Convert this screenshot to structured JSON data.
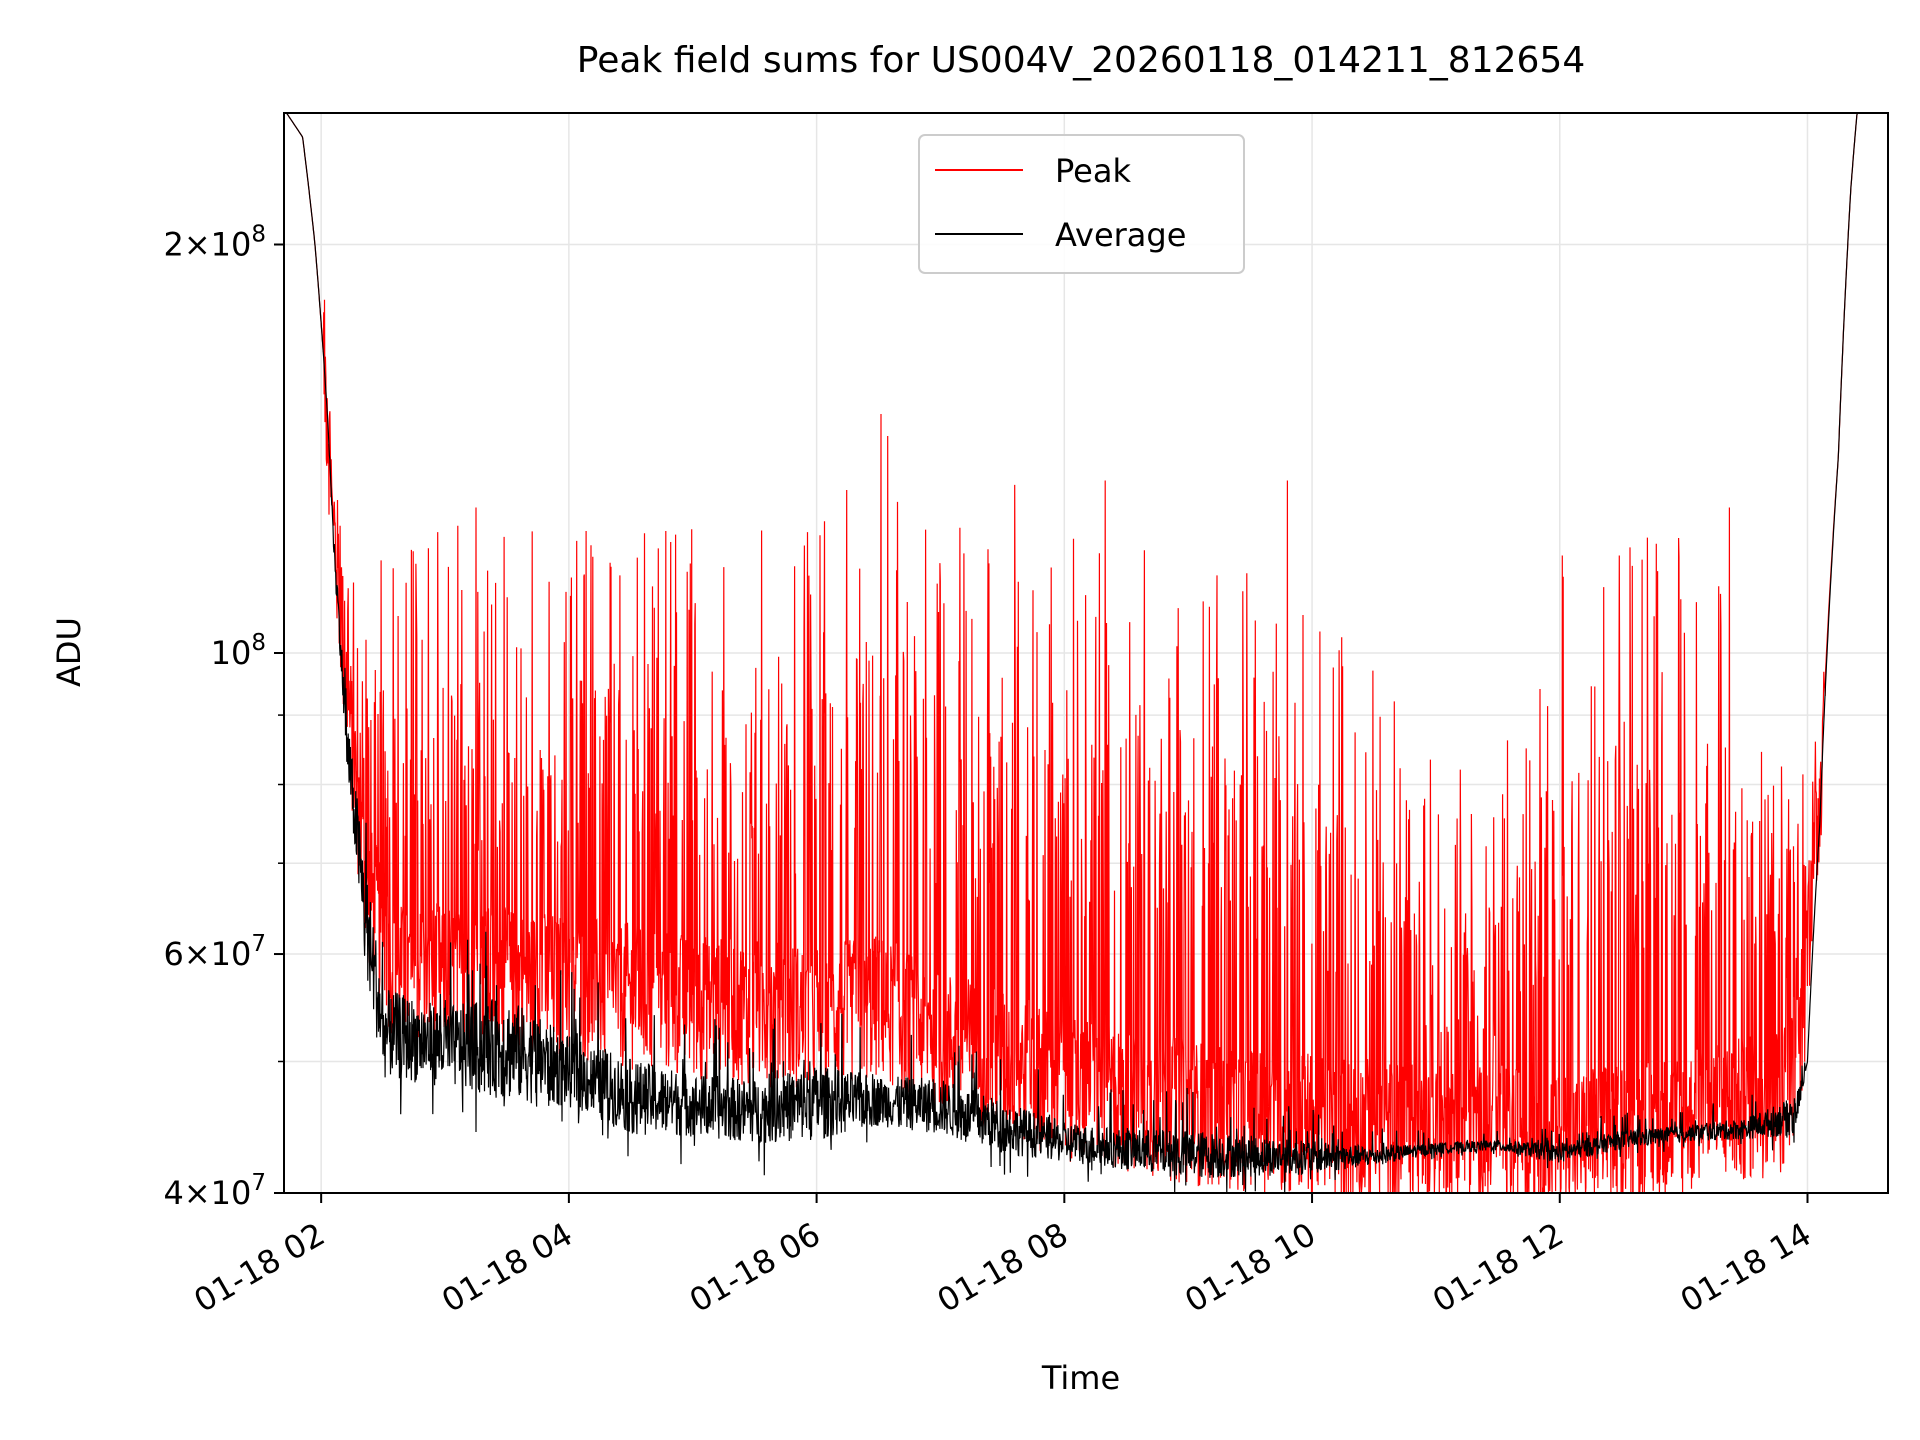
{
  "chart_data": {
    "type": "line",
    "title": "Peak field sums for US004V_20260118_014211_812654",
    "xlabel": "Time",
    "ylabel": "ADU",
    "yscale": "log",
    "ylim": [
      40000000,
      250000000
    ],
    "xlim_hours": [
      1.7,
      14.65
    ],
    "grid": true,
    "legend_position": "upper center",
    "x_ticks": [
      {
        "hour": 2,
        "label": "01-18 02"
      },
      {
        "hour": 4,
        "label": "01-18 04"
      },
      {
        "hour": 6,
        "label": "01-18 06"
      },
      {
        "hour": 8,
        "label": "01-18 08"
      },
      {
        "hour": 10,
        "label": "01-18 10"
      },
      {
        "hour": 12,
        "label": "01-18 12"
      },
      {
        "hour": 14,
        "label": "01-18 14"
      }
    ],
    "y_major_ticks": [
      {
        "value": 40000000,
        "mantissa": "4",
        "exp": "7"
      },
      {
        "value": 60000000,
        "mantissa": "6",
        "exp": "7"
      },
      {
        "value": 100000000,
        "mantissa": "",
        "exp": "8"
      },
      {
        "value": 200000000,
        "mantissa": "2",
        "exp": "8"
      }
    ],
    "y_minor_ticks": [
      50000000,
      70000000,
      80000000,
      90000000
    ],
    "series": [
      {
        "name": "Peak",
        "color": "#ff0000",
        "envelope": {
          "x_hours": [
            1.72,
            1.85,
            1.95,
            2.05,
            2.1,
            2.2,
            2.35,
            2.6,
            3.0,
            4.0,
            5.0,
            6.0,
            6.5,
            7.0,
            8.0,
            9.0,
            10.0,
            11.0,
            11.5,
            12.0,
            13.0,
            13.8,
            13.95,
            14.1,
            14.25,
            14.35,
            14.4
          ],
          "baseline": [
            250000000,
            240000000,
            200000000,
            150000000,
            125000000,
            95000000,
            68000000,
            58000000,
            58000000,
            57000000,
            55000000,
            54000000,
            55000000,
            52000000,
            48000000,
            46000000,
            45000000,
            44000000,
            44000000,
            43500000,
            45000000,
            47000000,
            52000000,
            78000000,
            140000000,
            220000000,
            250000000
          ],
          "spike_max": [
            250000000,
            240000000,
            205000000,
            160000000,
            130000000,
            125000000,
            120000000,
            118000000,
            125000000,
            125000000,
            125000000,
            123000000,
            150000000,
            125000000,
            122000000,
            120000000,
            110000000,
            85000000,
            82000000,
            118000000,
            125000000,
            95000000,
            90000000,
            85000000,
            140000000,
            220000000,
            250000000
          ]
        },
        "notable_spikes": [
          {
            "hour": 6.52,
            "value": 150000000
          },
          {
            "hour": 3.25,
            "value": 128000000
          },
          {
            "hour": 7.6,
            "value": 133000000
          },
          {
            "hour": 8.33,
            "value": 134000000
          },
          {
            "hour": 9.8,
            "value": 134000000
          },
          {
            "hour": 12.02,
            "value": 118000000
          },
          {
            "hour": 12.48,
            "value": 118000000
          },
          {
            "hour": 13.37,
            "value": 128000000
          }
        ]
      },
      {
        "name": "Average",
        "color": "#000000",
        "envelope": {
          "x_hours": [
            1.72,
            1.85,
            1.95,
            2.05,
            2.1,
            2.2,
            2.35,
            2.5,
            3.0,
            3.5,
            4.0,
            4.5,
            5.0,
            5.5,
            6.0,
            6.5,
            7.0,
            7.5,
            8.0,
            8.5,
            9.0,
            9.5,
            10.0,
            10.5,
            11.0,
            11.5,
            12.0,
            12.5,
            13.0,
            13.5,
            13.9,
            14.0,
            14.1,
            14.25,
            14.35,
            14.4
          ],
          "baseline": [
            250000000,
            240000000,
            200000000,
            150000000,
            120000000,
            85000000,
            62000000,
            51000000,
            50000000,
            49500000,
            48000000,
            46000000,
            45500000,
            45000000,
            45500000,
            46000000,
            45500000,
            44000000,
            43000000,
            42500000,
            42000000,
            42000000,
            42000000,
            42300000,
            43000000,
            43200000,
            42500000,
            43500000,
            44000000,
            44300000,
            45000000,
            50000000,
            75000000,
            140000000,
            220000000,
            250000000
          ],
          "noise_amp": [
            0,
            0,
            0,
            0,
            2000000,
            4000000,
            6000000,
            4000000,
            3500000,
            4500000,
            3000000,
            3000000,
            2500000,
            2500000,
            3000000,
            2000000,
            2200000,
            2000000,
            1500000,
            1500000,
            1800000,
            1500000,
            1200000,
            700000,
            400000,
            400000,
            700000,
            700000,
            600000,
            800000,
            1500000,
            0,
            0,
            0,
            0,
            0
          ]
        }
      }
    ]
  },
  "legend": {
    "entries": [
      {
        "label": "Peak",
        "color": "#ff0000"
      },
      {
        "label": "Average",
        "color": "#000000"
      }
    ]
  },
  "colors": {
    "grid": "#e6e6e6",
    "frame": "#000000"
  }
}
